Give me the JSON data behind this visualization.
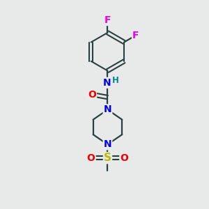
{
  "background_color": "#e8eaea",
  "atom_colors": {
    "C": "#1a1a1a",
    "N": "#0000ee",
    "O": "#ee0000",
    "F": "#ee00ee",
    "S": "#bbbb00",
    "H": "#008888"
  },
  "bond_color": "#2a4040",
  "figsize": [
    3.0,
    3.0
  ],
  "dpi": 100
}
